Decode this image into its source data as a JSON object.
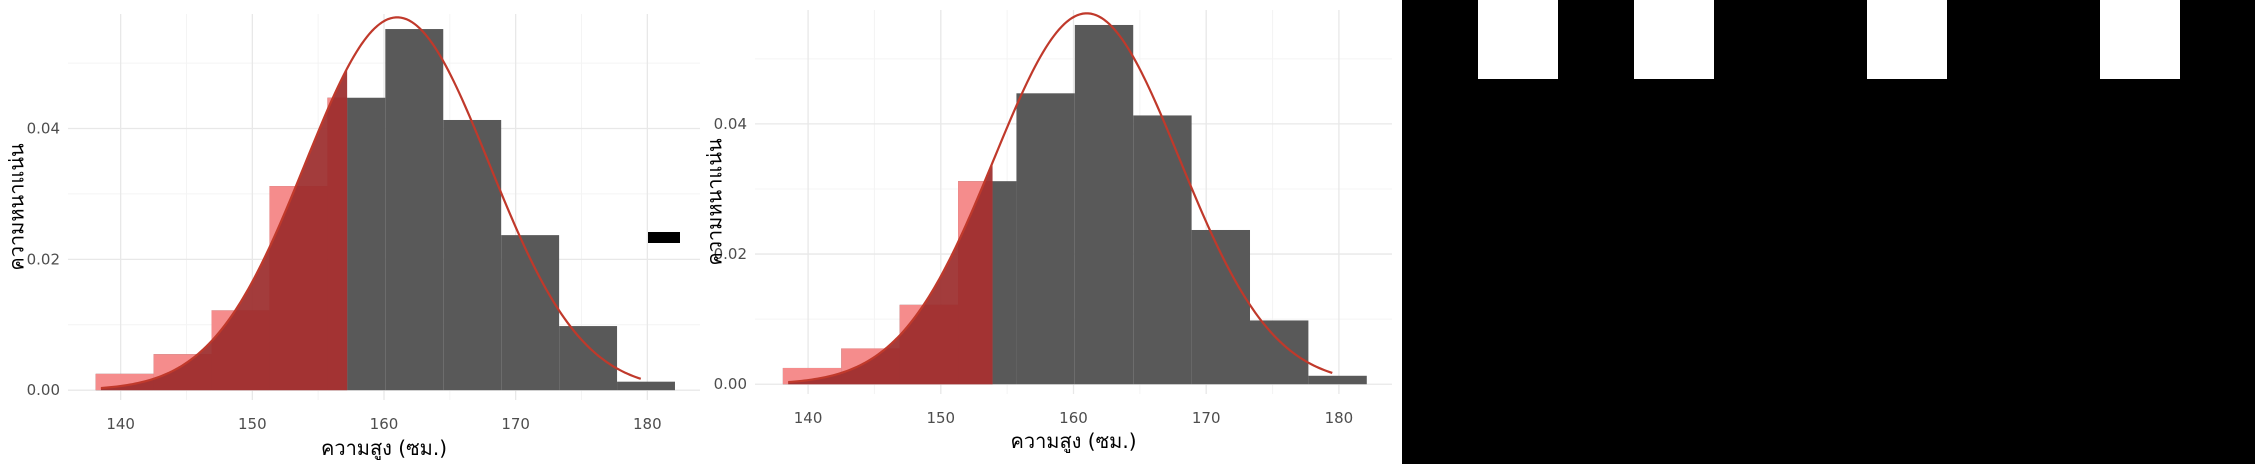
{
  "colors": {
    "bar": "#595959",
    "shade_light": "#f58c8c",
    "shade_dark": "#9b2b2b",
    "curve": "#c0392b",
    "grid_major": "#e8e8e8",
    "grid_minor": "#f4f4f4",
    "tick_text": "#4d4d4d",
    "legend_key": "#000000",
    "dark_panel": "#000000",
    "dark_panel_blocks": "#ffffff"
  },
  "chart_data": [
    {
      "type": "bar",
      "title": "",
      "xlabel": "ความสูง (ซม.)",
      "ylabel": "ความหนาแน่น",
      "xlim": [
        136,
        184
      ],
      "ylim": [
        -0.0015,
        0.0575
      ],
      "xticks": [
        140,
        150,
        160,
        170,
        180
      ],
      "yticks": [
        0.0,
        0.02,
        0.04
      ],
      "ytick_labels": [
        "0.00",
        "0.02",
        "0.04"
      ],
      "bin_edges": [
        138.1,
        142.5,
        146.9,
        151.3,
        155.7,
        160.1,
        164.5,
        168.9,
        173.3,
        177.7,
        182.1
      ],
      "values": [
        0.0025,
        0.0055,
        0.0122,
        0.0312,
        0.0447,
        0.0552,
        0.0413,
        0.0237,
        0.0098,
        0.0013
      ],
      "shade_upper_x": 157.2,
      "normal_curve": {
        "mean": 161,
        "sd": 7,
        "x_range": [
          138.5,
          179.5
        ]
      },
      "grid": true,
      "legend": {
        "shown": true,
        "placement": "right",
        "key_only": true
      }
    },
    {
      "type": "bar",
      "title": "",
      "xlabel": "ความสูง (ซม.)",
      "ylabel": "ความหนาแน่น",
      "xlim": [
        136,
        184
      ],
      "ylim": [
        -0.0015,
        0.0575
      ],
      "xticks": [
        140,
        150,
        160,
        170,
        180
      ],
      "yticks": [
        0.0,
        0.02,
        0.04
      ],
      "ytick_labels": [
        "0.00",
        "0.02",
        "0.04"
      ],
      "bin_edges": [
        138.1,
        142.5,
        146.9,
        151.3,
        155.7,
        160.1,
        164.5,
        168.9,
        173.3,
        177.7,
        182.1
      ],
      "values": [
        0.0025,
        0.0055,
        0.0122,
        0.0312,
        0.0447,
        0.0552,
        0.0413,
        0.0237,
        0.0098,
        0.0013
      ],
      "shade_upper_x": 153.9,
      "normal_curve": {
        "mean": 161,
        "sd": 7,
        "x_range": [
          138.5,
          179.5
        ]
      },
      "grid": true,
      "legend": {
        "shown": false
      }
    }
  ]
}
